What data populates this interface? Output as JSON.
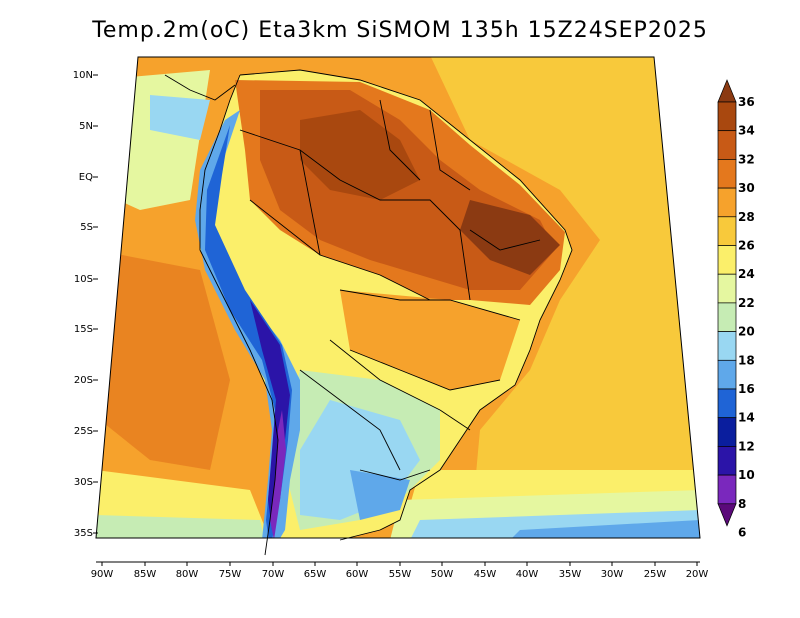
{
  "title": "Temp.2m(oC) Eta3km SiSMOM 135h 15Z24SEP2025",
  "map": {
    "lat_labels": [
      "10N",
      "5N",
      "EQ",
      "5S",
      "10S",
      "15S",
      "20S",
      "25S",
      "30S",
      "35S"
    ],
    "lon_labels": [
      "90W",
      "85W",
      "80W",
      "75W",
      "70W",
      "65W",
      "60W",
      "55W",
      "50W",
      "45W",
      "40W",
      "35W",
      "30W",
      "25W",
      "20W"
    ],
    "region": "South America"
  },
  "colorbar": {
    "levels": [
      "36",
      "34",
      "32",
      "30",
      "28",
      "26",
      "24",
      "22",
      "20",
      "18",
      "16",
      "14",
      "12",
      "10",
      "8",
      "6"
    ],
    "colors": [
      "#8b3a12",
      "#a9480f",
      "#c85a16",
      "#e4781d",
      "#f6a22c",
      "#f8c93b",
      "#fbef6a",
      "#e5f7a0",
      "#c6ecb4",
      "#99d7f2",
      "#5fa8ea",
      "#1f64d6",
      "#0a1e9e",
      "#2b14a8",
      "#7a28bd",
      "#5b0a7a"
    ],
    "units": "oC"
  }
}
